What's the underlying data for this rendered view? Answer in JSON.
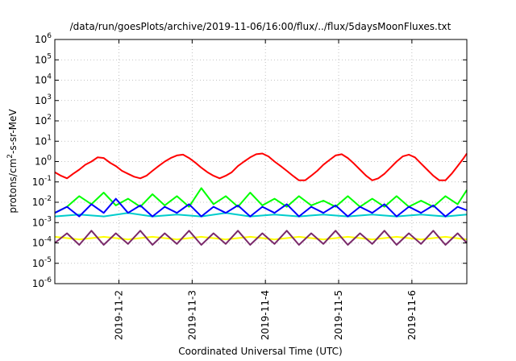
{
  "chart_data": {
    "type": "line",
    "title": "/data/run/goesPlots/archive/2019-11-06/16:00/flux/../flux/5daysMoonFluxes.txt",
    "xlabel": "Coordinated Universal Time (UTC)",
    "ylabel_parts": [
      "protons/cm",
      "2",
      "-s-sr-MeV"
    ],
    "y_scale": "log",
    "ylim": [
      1e-06,
      1000000.0
    ],
    "xlim": [
      "2019-11-01T03:00",
      "2019-11-06T18:00"
    ],
    "grid": true,
    "x_ticks": [
      {
        "label": "2019-11-2",
        "date": "2019-11-02T00:00"
      },
      {
        "label": "2019-11-3",
        "date": "2019-11-03T00:00"
      },
      {
        "label": "2019-11-4",
        "date": "2019-11-04T00:00"
      },
      {
        "label": "2019-11-5",
        "date": "2019-11-05T00:00"
      },
      {
        "label": "2019-11-6",
        "date": "2019-11-06T00:00"
      }
    ],
    "y_ticks": [
      {
        "base": "10",
        "exp": "-6"
      },
      {
        "base": "10",
        "exp": "-5"
      },
      {
        "base": "10",
        "exp": "-4"
      },
      {
        "base": "10",
        "exp": "-3"
      },
      {
        "base": "10",
        "exp": "-2"
      },
      {
        "base": "10",
        "exp": "-1"
      },
      {
        "base": "10",
        "exp": "0"
      },
      {
        "base": "10",
        "exp": "1"
      },
      {
        "base": "10",
        "exp": "2"
      },
      {
        "base": "10",
        "exp": "3"
      },
      {
        "base": "10",
        "exp": "4"
      },
      {
        "base": "10",
        "exp": "5"
      },
      {
        "base": "10",
        "exp": "6"
      }
    ],
    "series": [
      {
        "color": "#ff0000",
        "points": [
          [
            "2019-11-01T03:00",
            0.3
          ],
          [
            "2019-11-01T05:00",
            0.2
          ],
          [
            "2019-11-01T07:00",
            0.15
          ],
          [
            "2019-11-01T09:00",
            0.25
          ],
          [
            "2019-11-01T11:00",
            0.4
          ],
          [
            "2019-11-01T13:00",
            0.7
          ],
          [
            "2019-11-01T15:00",
            1.0
          ],
          [
            "2019-11-01T17:00",
            1.6
          ],
          [
            "2019-11-01T19:00",
            1.5
          ],
          [
            "2019-11-01T21:00",
            0.9
          ],
          [
            "2019-11-01T23:00",
            0.6
          ],
          [
            "2019-11-02T01:00",
            0.35
          ],
          [
            "2019-11-02T03:00",
            0.25
          ],
          [
            "2019-11-02T05:00",
            0.18
          ],
          [
            "2019-11-02T07:00",
            0.15
          ],
          [
            "2019-11-02T09:00",
            0.2
          ],
          [
            "2019-11-02T11:00",
            0.35
          ],
          [
            "2019-11-02T13:00",
            0.6
          ],
          [
            "2019-11-02T15:00",
            1.0
          ],
          [
            "2019-11-02T17:00",
            1.5
          ],
          [
            "2019-11-02T19:00",
            2.0
          ],
          [
            "2019-11-02T21:00",
            2.2
          ],
          [
            "2019-11-02T23:00",
            1.5
          ],
          [
            "2019-11-03T01:00",
            0.9
          ],
          [
            "2019-11-03T03:00",
            0.5
          ],
          [
            "2019-11-03T05:00",
            0.3
          ],
          [
            "2019-11-03T07:00",
            0.2
          ],
          [
            "2019-11-03T09:00",
            0.15
          ],
          [
            "2019-11-03T11:00",
            0.2
          ],
          [
            "2019-11-03T13:00",
            0.3
          ],
          [
            "2019-11-03T15:00",
            0.6
          ],
          [
            "2019-11-03T17:00",
            1.0
          ],
          [
            "2019-11-03T19:00",
            1.6
          ],
          [
            "2019-11-03T21:00",
            2.3
          ],
          [
            "2019-11-03T23:00",
            2.5
          ],
          [
            "2019-11-04T01:00",
            1.8
          ],
          [
            "2019-11-04T03:00",
            1.0
          ],
          [
            "2019-11-04T05:00",
            0.6
          ],
          [
            "2019-11-04T07:00",
            0.35
          ],
          [
            "2019-11-04T09:00",
            0.2
          ],
          [
            "2019-11-04T11:00",
            0.12
          ],
          [
            "2019-11-04T13:00",
            0.12
          ],
          [
            "2019-11-04T15:00",
            0.2
          ],
          [
            "2019-11-04T17:00",
            0.35
          ],
          [
            "2019-11-04T19:00",
            0.7
          ],
          [
            "2019-11-04T21:00",
            1.2
          ],
          [
            "2019-11-04T23:00",
            2.0
          ],
          [
            "2019-11-05T01:00",
            2.3
          ],
          [
            "2019-11-05T03:00",
            1.5
          ],
          [
            "2019-11-05T05:00",
            0.8
          ],
          [
            "2019-11-05T07:00",
            0.4
          ],
          [
            "2019-11-05T09:00",
            0.2
          ],
          [
            "2019-11-05T11:00",
            0.12
          ],
          [
            "2019-11-05T13:00",
            0.15
          ],
          [
            "2019-11-05T15:00",
            0.25
          ],
          [
            "2019-11-05T17:00",
            0.5
          ],
          [
            "2019-11-05T19:00",
            1.0
          ],
          [
            "2019-11-05T21:00",
            1.8
          ],
          [
            "2019-11-05T23:00",
            2.2
          ],
          [
            "2019-11-06T01:00",
            1.6
          ],
          [
            "2019-11-06T03:00",
            0.8
          ],
          [
            "2019-11-06T05:00",
            0.4
          ],
          [
            "2019-11-06T07:00",
            0.2
          ],
          [
            "2019-11-06T09:00",
            0.12
          ],
          [
            "2019-11-06T11:00",
            0.12
          ],
          [
            "2019-11-06T13:00",
            0.25
          ],
          [
            "2019-11-06T15:00",
            0.6
          ],
          [
            "2019-11-06T17:00",
            1.5
          ],
          [
            "2019-11-06T18:00",
            2.5
          ]
        ]
      },
      {
        "color": "#00ff00",
        "points": [
          [
            "2019-11-01T03:00",
            0.003
          ],
          [
            "2019-11-01T07:00",
            0.006
          ],
          [
            "2019-11-01T11:00",
            0.02
          ],
          [
            "2019-11-01T15:00",
            0.008
          ],
          [
            "2019-11-01T19:00",
            0.03
          ],
          [
            "2019-11-01T23:00",
            0.007
          ],
          [
            "2019-11-02T03:00",
            0.015
          ],
          [
            "2019-11-02T07:00",
            0.006
          ],
          [
            "2019-11-02T11:00",
            0.025
          ],
          [
            "2019-11-02T15:00",
            0.007
          ],
          [
            "2019-11-02T19:00",
            0.02
          ],
          [
            "2019-11-02T23:00",
            0.006
          ],
          [
            "2019-11-03T03:00",
            0.05
          ],
          [
            "2019-11-03T07:00",
            0.008
          ],
          [
            "2019-11-03T11:00",
            0.02
          ],
          [
            "2019-11-03T15:00",
            0.006
          ],
          [
            "2019-11-03T19:00",
            0.03
          ],
          [
            "2019-11-03T23:00",
            0.007
          ],
          [
            "2019-11-04T03:00",
            0.015
          ],
          [
            "2019-11-04T07:00",
            0.006
          ],
          [
            "2019-11-04T11:00",
            0.02
          ],
          [
            "2019-11-04T15:00",
            0.007
          ],
          [
            "2019-11-04T19:00",
            0.012
          ],
          [
            "2019-11-04T23:00",
            0.006
          ],
          [
            "2019-11-05T03:00",
            0.02
          ],
          [
            "2019-11-05T07:00",
            0.006
          ],
          [
            "2019-11-05T11:00",
            0.015
          ],
          [
            "2019-11-05T15:00",
            0.006
          ],
          [
            "2019-11-05T19:00",
            0.02
          ],
          [
            "2019-11-05T23:00",
            0.006
          ],
          [
            "2019-11-06T03:00",
            0.012
          ],
          [
            "2019-11-06T07:00",
            0.006
          ],
          [
            "2019-11-06T11:00",
            0.02
          ],
          [
            "2019-11-06T15:00",
            0.008
          ],
          [
            "2019-11-06T18:00",
            0.04
          ]
        ]
      },
      {
        "color": "#00cccc",
        "points": [
          [
            "2019-11-01T03:00",
            0.002
          ],
          [
            "2019-11-01T11:00",
            0.0025
          ],
          [
            "2019-11-01T19:00",
            0.002
          ],
          [
            "2019-11-02T03:00",
            0.003
          ],
          [
            "2019-11-02T11:00",
            0.002
          ],
          [
            "2019-11-02T19:00",
            0.0025
          ],
          [
            "2019-11-03T03:00",
            0.002
          ],
          [
            "2019-11-03T11:00",
            0.003
          ],
          [
            "2019-11-03T19:00",
            0.002
          ],
          [
            "2019-11-04T03:00",
            0.0025
          ],
          [
            "2019-11-04T11:00",
            0.002
          ],
          [
            "2019-11-04T19:00",
            0.0025
          ],
          [
            "2019-11-05T03:00",
            0.002
          ],
          [
            "2019-11-05T11:00",
            0.0025
          ],
          [
            "2019-11-05T19:00",
            0.002
          ],
          [
            "2019-11-06T03:00",
            0.0025
          ],
          [
            "2019-11-06T11:00",
            0.002
          ],
          [
            "2019-11-06T18:00",
            0.0025
          ]
        ]
      },
      {
        "color": "#0000ff",
        "points": [
          [
            "2019-11-01T03:00",
            0.003
          ],
          [
            "2019-11-01T07:00",
            0.006
          ],
          [
            "2019-11-01T11:00",
            0.002
          ],
          [
            "2019-11-01T15:00",
            0.008
          ],
          [
            "2019-11-01T19:00",
            0.003
          ],
          [
            "2019-11-01T23:00",
            0.015
          ],
          [
            "2019-11-02T03:00",
            0.003
          ],
          [
            "2019-11-02T07:00",
            0.007
          ],
          [
            "2019-11-02T11:00",
            0.002
          ],
          [
            "2019-11-02T15:00",
            0.006
          ],
          [
            "2019-11-02T19:00",
            0.003
          ],
          [
            "2019-11-02T23:00",
            0.008
          ],
          [
            "2019-11-03T03:00",
            0.002
          ],
          [
            "2019-11-03T07:00",
            0.006
          ],
          [
            "2019-11-03T11:00",
            0.003
          ],
          [
            "2019-11-03T15:00",
            0.007
          ],
          [
            "2019-11-03T19:00",
            0.002
          ],
          [
            "2019-11-03T23:00",
            0.006
          ],
          [
            "2019-11-04T03:00",
            0.003
          ],
          [
            "2019-11-04T07:00",
            0.008
          ],
          [
            "2019-11-04T11:00",
            0.002
          ],
          [
            "2019-11-04T15:00",
            0.006
          ],
          [
            "2019-11-04T19:00",
            0.003
          ],
          [
            "2019-11-04T23:00",
            0.007
          ],
          [
            "2019-11-05T03:00",
            0.002
          ],
          [
            "2019-11-05T07:00",
            0.006
          ],
          [
            "2019-11-05T11:00",
            0.003
          ],
          [
            "2019-11-05T15:00",
            0.008
          ],
          [
            "2019-11-05T19:00",
            0.002
          ],
          [
            "2019-11-05T23:00",
            0.006
          ],
          [
            "2019-11-06T03:00",
            0.003
          ],
          [
            "2019-11-06T07:00",
            0.007
          ],
          [
            "2019-11-06T11:00",
            0.002
          ],
          [
            "2019-11-06T15:00",
            0.006
          ],
          [
            "2019-11-06T18:00",
            0.004
          ]
        ]
      },
      {
        "color": "#ffff00",
        "points": [
          [
            "2019-11-01T03:00",
            0.0002
          ],
          [
            "2019-11-01T11:00",
            0.00015
          ],
          [
            "2019-11-01T19:00",
            0.0002
          ],
          [
            "2019-11-02T03:00",
            0.00015
          ],
          [
            "2019-11-02T11:00",
            0.0002
          ],
          [
            "2019-11-02T19:00",
            0.00015
          ],
          [
            "2019-11-03T03:00",
            0.0002
          ],
          [
            "2019-11-03T11:00",
            0.00015
          ],
          [
            "2019-11-03T19:00",
            0.0002
          ],
          [
            "2019-11-04T03:00",
            0.00015
          ],
          [
            "2019-11-04T11:00",
            0.0002
          ],
          [
            "2019-11-04T19:00",
            0.00015
          ],
          [
            "2019-11-05T03:00",
            0.0002
          ],
          [
            "2019-11-05T11:00",
            0.00015
          ],
          [
            "2019-11-05T19:00",
            0.0002
          ],
          [
            "2019-11-06T03:00",
            0.00015
          ],
          [
            "2019-11-06T11:00",
            0.0002
          ],
          [
            "2019-11-06T18:00",
            0.00015
          ]
        ]
      },
      {
        "color": "#7a2a6a",
        "points": [
          [
            "2019-11-01T03:00",
            0.0001
          ],
          [
            "2019-11-01T07:00",
            0.0003
          ],
          [
            "2019-11-01T11:00",
            8e-05
          ],
          [
            "2019-11-01T15:00",
            0.0004
          ],
          [
            "2019-11-01T19:00",
            8e-05
          ],
          [
            "2019-11-01T23:00",
            0.0003
          ],
          [
            "2019-11-02T03:00",
            9e-05
          ],
          [
            "2019-11-02T07:00",
            0.0004
          ],
          [
            "2019-11-02T11:00",
            8e-05
          ],
          [
            "2019-11-02T15:00",
            0.0003
          ],
          [
            "2019-11-02T19:00",
            9e-05
          ],
          [
            "2019-11-02T23:00",
            0.0004
          ],
          [
            "2019-11-03T03:00",
            8e-05
          ],
          [
            "2019-11-03T07:00",
            0.0003
          ],
          [
            "2019-11-03T11:00",
            9e-05
          ],
          [
            "2019-11-03T15:00",
            0.0004
          ],
          [
            "2019-11-03T19:00",
            8e-05
          ],
          [
            "2019-11-03T23:00",
            0.0003
          ],
          [
            "2019-11-04T03:00",
            9e-05
          ],
          [
            "2019-11-04T07:00",
            0.0004
          ],
          [
            "2019-11-04T11:00",
            8e-05
          ],
          [
            "2019-11-04T15:00",
            0.0003
          ],
          [
            "2019-11-04T19:00",
            9e-05
          ],
          [
            "2019-11-04T23:00",
            0.0004
          ],
          [
            "2019-11-05T03:00",
            8e-05
          ],
          [
            "2019-11-05T07:00",
            0.0003
          ],
          [
            "2019-11-05T11:00",
            9e-05
          ],
          [
            "2019-11-05T15:00",
            0.0004
          ],
          [
            "2019-11-05T19:00",
            8e-05
          ],
          [
            "2019-11-05T23:00",
            0.0003
          ],
          [
            "2019-11-06T03:00",
            9e-05
          ],
          [
            "2019-11-06T07:00",
            0.0004
          ],
          [
            "2019-11-06T11:00",
            8e-05
          ],
          [
            "2019-11-06T15:00",
            0.0003
          ],
          [
            "2019-11-06T18:00",
            0.0001
          ]
        ]
      }
    ]
  }
}
